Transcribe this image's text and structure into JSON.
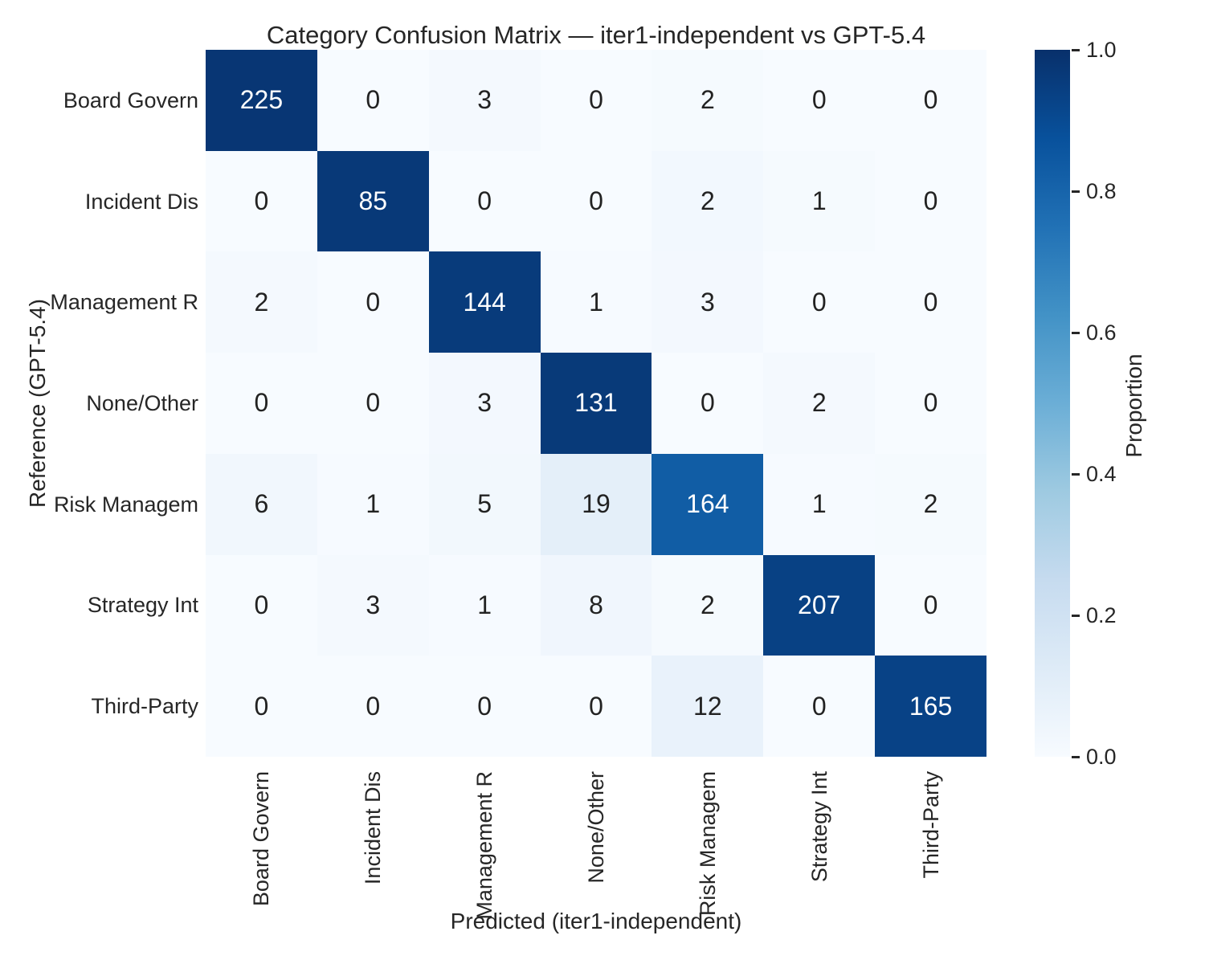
{
  "title": "Category Confusion Matrix — iter1-independent vs GPT-5.4",
  "chart_data": {
    "type": "heatmap",
    "title": "Category Confusion Matrix — iter1-independent vs GPT-5.4",
    "xlabel": "Predicted (iter1-independent)",
    "ylabel": "Reference (GPT-5.4)",
    "row_labels": [
      "Board Govern",
      "Incident Dis",
      "Management R",
      "None/Other",
      "Risk Managem",
      "Strategy Int",
      "Third-Party"
    ],
    "col_labels": [
      "Board Govern",
      "Incident Dis",
      "Management R",
      "None/Other",
      "Risk Managem",
      "Strategy Int",
      "Third-Party"
    ],
    "values": [
      [
        225,
        0,
        3,
        0,
        2,
        0,
        0
      ],
      [
        0,
        85,
        0,
        0,
        2,
        1,
        0
      ],
      [
        2,
        0,
        144,
        1,
        3,
        0,
        0
      ],
      [
        0,
        0,
        3,
        131,
        0,
        2,
        0
      ],
      [
        6,
        1,
        5,
        19,
        164,
        1,
        2
      ],
      [
        0,
        3,
        1,
        8,
        2,
        207,
        0
      ],
      [
        0,
        0,
        0,
        0,
        12,
        0,
        165
      ]
    ],
    "normalization": "row",
    "grid": false,
    "colormap": "Blues",
    "cmap_anchors": [
      "#f7fbff",
      "#deebf7",
      "#c6dbef",
      "#9ecae1",
      "#6baed6",
      "#4292c6",
      "#2171b5",
      "#08519c",
      "#08306b"
    ],
    "annotation_color_dark": "#222222",
    "annotation_color_light": "#ffffff",
    "colorbar": {
      "label": "Proportion",
      "position": "right",
      "range": [
        0.0,
        1.0
      ],
      "tick_values": [
        1.0,
        0.8,
        0.6,
        0.4,
        0.2,
        0.0
      ],
      "tick_labels": [
        "1.0",
        "0.8",
        "0.6",
        "0.4",
        "0.2",
        "0.0"
      ]
    }
  }
}
